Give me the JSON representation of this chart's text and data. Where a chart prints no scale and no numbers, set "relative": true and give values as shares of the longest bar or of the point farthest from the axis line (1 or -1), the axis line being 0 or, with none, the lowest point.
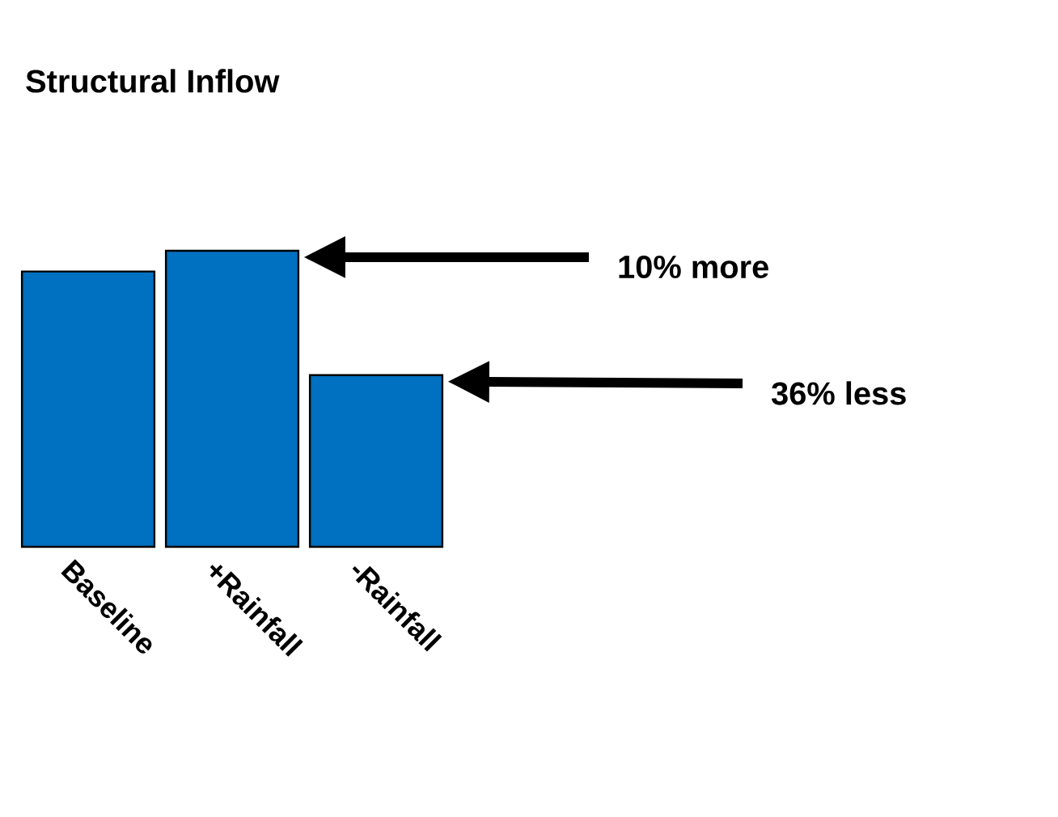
{
  "chart_data": {
    "type": "bar",
    "title": "Structural Inflow",
    "relative": true,
    "categories": [
      "Baseline",
      "+Rainfall",
      "-Rainfall"
    ],
    "values": [
      0.93,
      1,
      0.58
    ],
    "color": "#0070c0",
    "annotations": [
      "10% more",
      "36% less"
    ]
  }
}
